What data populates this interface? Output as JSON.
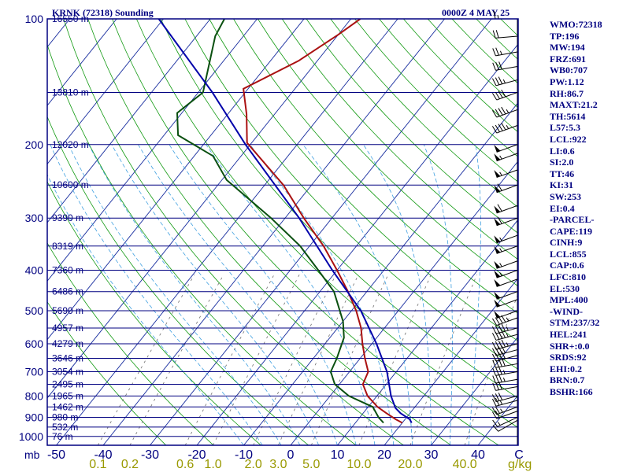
{
  "colors": {
    "frame": "#000080",
    "isobar": "#000080",
    "isotherm": "#1a2fa0",
    "dry_adiabat": "#119911",
    "moist_adiabat": "#40a0e0",
    "mixing_ratio": "#707070",
    "temperature": "#aa1111",
    "dewpoint": "#0a5010",
    "parcel": "#0000aa",
    "wind": "#000000",
    "mixing_ratio_label": "#999900",
    "label": "#000080"
  },
  "header": {
    "station": "KRNK (72318) Sounding",
    "time": "0000Z  4 MAY 25"
  },
  "chart_data": {
    "type": "line",
    "chart_kind": "skew-t log-p sounding",
    "x_unit": "°C",
    "x_unit_label": "C",
    "y_unit_label": "mb",
    "mixing_ratio_unit_label": "g/kg",
    "temperature_ticks": [
      "-50",
      "-40",
      "-30",
      "-20",
      "-10",
      "0",
      "10",
      "20",
      "30",
      "40"
    ],
    "pressure_ticks": [
      "100",
      "200",
      "300",
      "400",
      "500",
      "600",
      "700",
      "800",
      "900",
      "1000"
    ],
    "mixing_ratio_ticks": [
      "0.1",
      "0.2",
      "0.6",
      "1.0",
      "2.0",
      "3.0",
      "5.0",
      "10.0",
      "20.0",
      "40.0"
    ],
    "heights": [
      {
        "p": 100,
        "label": "16550 m"
      },
      {
        "p": 150,
        "label": "13810 m"
      },
      {
        "p": 200,
        "label": "12020 m"
      },
      {
        "p": 250,
        "label": "10600 m"
      },
      {
        "p": 300,
        "label": "9390 m"
      },
      {
        "p": 350,
        "label": "8319 m"
      },
      {
        "p": 400,
        "label": "7360 m"
      },
      {
        "p": 450,
        "label": "6486 m"
      },
      {
        "p": 500,
        "label": "5690 m"
      },
      {
        "p": 550,
        "label": "4957 m"
      },
      {
        "p": 600,
        "label": "4279 m"
      },
      {
        "p": 650,
        "label": "3646 m"
      },
      {
        "p": 700,
        "label": "3054 m"
      },
      {
        "p": 750,
        "label": "2495 m"
      },
      {
        "p": 800,
        "label": "1965 m"
      },
      {
        "p": 850,
        "label": "1462 m"
      },
      {
        "p": 900,
        "label": "980 m"
      },
      {
        "p": 950,
        "label": "532 m"
      },
      {
        "p": 1000,
        "label": "76 m"
      }
    ],
    "series": [
      {
        "key": "temperature",
        "points": [
          {
            "p": 100,
            "t": -58
          },
          {
            "p": 109,
            "t": -60
          },
          {
            "p": 126,
            "t": -64
          },
          {
            "p": 147,
            "t": -71
          },
          {
            "p": 169,
            "t": -66
          },
          {
            "p": 198,
            "t": -61
          },
          {
            "p": 250,
            "t": -46
          },
          {
            "p": 300,
            "t": -36
          },
          {
            "p": 350,
            "t": -27
          },
          {
            "p": 400,
            "t": -20
          },
          {
            "p": 450,
            "t": -14
          },
          {
            "p": 500,
            "t": -9
          },
          {
            "p": 550,
            "t": -5
          },
          {
            "p": 600,
            "t": -2
          },
          {
            "p": 650,
            "t": 1
          },
          {
            "p": 700,
            "t": 4
          },
          {
            "p": 750,
            "t": 5
          },
          {
            "p": 800,
            "t": 8
          },
          {
            "p": 850,
            "t": 12
          },
          {
            "p": 880,
            "t": 15
          },
          {
            "p": 910,
            "t": 18
          },
          {
            "p": 928,
            "t": 20
          }
        ]
      },
      {
        "key": "dewpoint",
        "points": [
          {
            "p": 100,
            "t": -87
          },
          {
            "p": 110,
            "t": -86
          },
          {
            "p": 150,
            "t": -79
          },
          {
            "p": 168,
            "t": -81
          },
          {
            "p": 190,
            "t": -77
          },
          {
            "p": 213,
            "t": -66
          },
          {
            "p": 243,
            "t": -59
          },
          {
            "p": 300,
            "t": -43
          },
          {
            "p": 350,
            "t": -32
          },
          {
            "p": 400,
            "t": -24
          },
          {
            "p": 450,
            "t": -17
          },
          {
            "p": 530,
            "t": -10
          },
          {
            "p": 580,
            "t": -7
          },
          {
            "p": 650,
            "t": -5
          },
          {
            "p": 700,
            "t": -4
          },
          {
            "p": 750,
            "t": -1
          },
          {
            "p": 800,
            "t": 4
          },
          {
            "p": 850,
            "t": 11
          },
          {
            "p": 900,
            "t": 14
          },
          {
            "p": 928,
            "t": 16
          }
        ]
      },
      {
        "key": "parcel",
        "points": [
          {
            "p": 928,
            "t": 22
          },
          {
            "p": 910,
            "t": 21
          },
          {
            "p": 880,
            "t": 18
          },
          {
            "p": 855,
            "t": 16
          },
          {
            "p": 800,
            "t": 13
          },
          {
            "p": 700,
            "t": 8
          },
          {
            "p": 600,
            "t": 1
          },
          {
            "p": 500,
            "t": -8
          },
          {
            "p": 400,
            "t": -21
          },
          {
            "p": 300,
            "t": -37
          },
          {
            "p": 200,
            "t": -61
          },
          {
            "p": 150,
            "t": -77
          },
          {
            "p": 100,
            "t": -101
          }
        ]
      }
    ],
    "winds": [
      {
        "p": 915,
        "dir": 240,
        "spd": 10
      },
      {
        "p": 900,
        "dir": 245,
        "spd": 15
      },
      {
        "p": 870,
        "dir": 250,
        "spd": 20
      },
      {
        "p": 850,
        "dir": 250,
        "spd": 25
      },
      {
        "p": 820,
        "dir": 255,
        "spd": 25
      },
      {
        "p": 800,
        "dir": 255,
        "spd": 30
      },
      {
        "p": 760,
        "dir": 260,
        "spd": 30
      },
      {
        "p": 730,
        "dir": 260,
        "spd": 35
      },
      {
        "p": 700,
        "dir": 260,
        "spd": 35
      },
      {
        "p": 670,
        "dir": 260,
        "spd": 40
      },
      {
        "p": 640,
        "dir": 255,
        "spd": 40
      },
      {
        "p": 620,
        "dir": 255,
        "spd": 40
      },
      {
        "p": 600,
        "dir": 255,
        "spd": 45
      },
      {
        "p": 570,
        "dir": 255,
        "spd": 45
      },
      {
        "p": 550,
        "dir": 255,
        "spd": 45
      },
      {
        "p": 520,
        "dir": 250,
        "spd": 45
      },
      {
        "p": 500,
        "dir": 250,
        "spd": 50
      },
      {
        "p": 470,
        "dir": 250,
        "spd": 50
      },
      {
        "p": 450,
        "dir": 250,
        "spd": 50
      },
      {
        "p": 420,
        "dir": 250,
        "spd": 50
      },
      {
        "p": 400,
        "dir": 250,
        "spd": 55
      },
      {
        "p": 380,
        "dir": 250,
        "spd": 55
      },
      {
        "p": 350,
        "dir": 250,
        "spd": 55
      },
      {
        "p": 330,
        "dir": 250,
        "spd": 55
      },
      {
        "p": 300,
        "dir": 250,
        "spd": 60
      },
      {
        "p": 280,
        "dir": 250,
        "spd": 60
      },
      {
        "p": 250,
        "dir": 250,
        "spd": 60
      },
      {
        "p": 230,
        "dir": 250,
        "spd": 55
      },
      {
        "p": 210,
        "dir": 250,
        "spd": 55
      },
      {
        "p": 200,
        "dir": 250,
        "spd": 50
      },
      {
        "p": 180,
        "dir": 250,
        "spd": 45
      },
      {
        "p": 165,
        "dir": 250,
        "spd": 45
      },
      {
        "p": 150,
        "dir": 250,
        "spd": 40
      },
      {
        "p": 140,
        "dir": 255,
        "spd": 35
      },
      {
        "p": 130,
        "dir": 260,
        "spd": 30
      },
      {
        "p": 120,
        "dir": 260,
        "spd": 25
      },
      {
        "p": 110,
        "dir": 265,
        "spd": 20
      },
      {
        "p": 100,
        "dir": 270,
        "spd": 15
      }
    ],
    "indices": [
      "WMO:72318",
      "TP:196",
      "MW:194",
      "FRZ:691",
      "WB0:707",
      "PW:1.12",
      "RH:86.7",
      "MAXT:21.2",
      "TH:5614",
      "L57:5.3",
      "LCL:922",
      "LI:0.6",
      "SI:2.0",
      "TT:46",
      "KI:31",
      "SW:253",
      "EI:0.4",
      "-PARCEL-",
      "CAPE:119",
      "CINH:9",
      "LCL:855",
      "CAP:0.6",
      "LFC:810",
      "EL:530",
      "MPL:400",
      "-WIND-",
      "STM:237/32",
      "HEL:241",
      "SHR+:0.0",
      "SRDS:92",
      "EHI:0.2",
      "BRN:0.7",
      "BSHR:166"
    ]
  }
}
